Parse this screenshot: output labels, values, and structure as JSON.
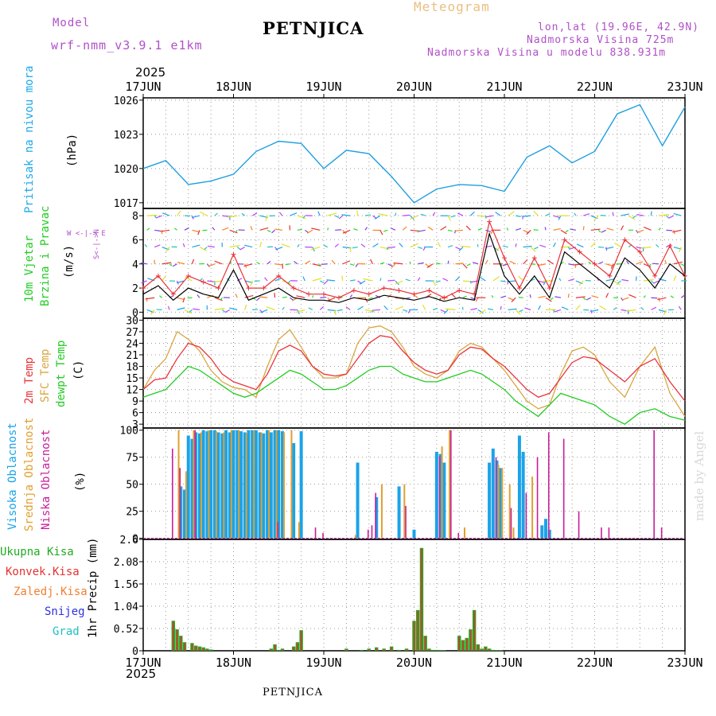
{
  "header": {
    "model_label": "Model",
    "model_name": "wrf-nmm_v3.9.1 e1km",
    "station": "PETNJICA",
    "product": "Meteogram",
    "coords": "lon,lat (19.96E, 42.9N)",
    "altitude": "Nadmorska Visina 725m",
    "model_altitude": "Nadmorska Visina u modelu 838.931m",
    "footer_station": "PETNJICA",
    "credit": "made by Angel"
  },
  "time_axis": {
    "year_top": "2025",
    "year_bottom": "2025",
    "labels": [
      "17JUN",
      "18JUN",
      "19JUN",
      "20JUN",
      "21JUN",
      "22JUN",
      "23JUN"
    ],
    "hours_total": 144
  },
  "colors": {
    "pressure": "#1f9fe0",
    "wind": "#000000",
    "gust": "#e8343a",
    "temp2m": "#e8343a",
    "sfc": "#d9a540",
    "dewpt": "#22cc22",
    "high_cloud": "#1aa3e8",
    "mid_cloud": "#e0a030",
    "low_cloud": "#c81e9a",
    "total_precip": "#22aa22",
    "conv_precip": "#e83030",
    "frozen": "#f08030",
    "snow": "#3030e0",
    "grad": "#20c0c0",
    "purple_text": "#b050c8"
  },
  "panels": {
    "pressure": {
      "ylabel": "Pritisak na nivou mora",
      "unit": "(hPa)",
      "ticks": [
        "1017",
        "1020",
        "1023",
        "1026"
      ]
    },
    "wind": {
      "ylabel1": "10m Vjetar",
      "ylabel2": "Brzina i Pravac",
      "unit": "(m/s)",
      "ticks": [
        "0",
        "2",
        "4",
        "6",
        "8"
      ],
      "compass": "W <-|-> E",
      "compass_ns": "S<-|->N"
    },
    "temp": {
      "ylabel1": "2m Temp",
      "ylabel2": "SFC Temp",
      "ylabel3": "dewpt Temp",
      "unit": "(C)",
      "ticks": [
        "3",
        "6",
        "9",
        "12",
        "15",
        "18",
        "21",
        "24",
        "27",
        "30"
      ]
    },
    "cloud": {
      "ylabel1": "Visoka Oblacnost",
      "ylabel2": "Srednja Oblacnost",
      "ylabel3": "Niska Oblacnost",
      "unit": "(%)",
      "ticks": [
        "0",
        "25",
        "50",
        "75",
        "100"
      ]
    },
    "precip": {
      "ylabel": "1hr Precip (mm)",
      "legend": [
        "Ukupna Kisa",
        "Konvek.Kisa",
        "Zaledj.Kisa",
        "Snijeg",
        "Grad"
      ],
      "ticks": [
        "0",
        "0.52",
        "1.04",
        "1.56",
        "2.08",
        "2.6"
      ]
    }
  },
  "chart_data": [
    {
      "type": "line",
      "name": "pressure",
      "x_hours": [
        0,
        6,
        12,
        18,
        24,
        30,
        36,
        42,
        48,
        54,
        60,
        66,
        72,
        78,
        84,
        90,
        96,
        102,
        108,
        114,
        120,
        126,
        132,
        138,
        144
      ],
      "y": [
        1020.0,
        1020.7,
        1018.6,
        1018.9,
        1019.5,
        1021.5,
        1022.4,
        1022.2,
        1020.0,
        1021.6,
        1021.3,
        1019.3,
        1017.0,
        1018.2,
        1018.6,
        1018.5,
        1018.0,
        1021.0,
        1022.0,
        1020.5,
        1021.5,
        1024.8,
        1025.6,
        1022.0,
        1025.4
      ],
      "ylim": [
        1016.5,
        1026.2
      ]
    },
    {
      "type": "line",
      "name": "wind_speed",
      "x_hours": [
        0,
        4,
        8,
        12,
        16,
        20,
        24,
        28,
        32,
        36,
        40,
        44,
        48,
        52,
        56,
        60,
        64,
        68,
        72,
        76,
        80,
        84,
        88,
        92,
        96,
        100,
        104,
        108,
        112,
        116,
        120,
        124,
        128,
        132,
        136,
        140,
        144
      ],
      "y": [
        1.5,
        2.2,
        1.0,
        2.0,
        1.5,
        1.2,
        3.5,
        1.0,
        1.5,
        2.0,
        1.2,
        1.0,
        1.0,
        0.8,
        1.2,
        1.0,
        1.4,
        1.2,
        1.0,
        1.3,
        0.9,
        1.2,
        1.0,
        6.5,
        3.0,
        1.5,
        3.0,
        1.2,
        5.0,
        4.0,
        3.0,
        2.0,
        4.5,
        3.5,
        2.0,
        4.0,
        3.0
      ],
      "gust_y": [
        2.0,
        3.0,
        1.5,
        3.0,
        2.5,
        2.0,
        4.8,
        2.0,
        2.0,
        3.0,
        2.0,
        1.5,
        1.5,
        1.2,
        1.8,
        1.5,
        2.0,
        1.8,
        1.5,
        1.8,
        1.2,
        1.8,
        1.5,
        7.5,
        4.5,
        2.0,
        4.5,
        2.0,
        6.0,
        5.0,
        4.0,
        3.0,
        6.0,
        5.0,
        3.0,
        5.5,
        3.0
      ],
      "ylim": [
        -0.5,
        8.6
      ]
    },
    {
      "type": "line",
      "name": "temperature",
      "x_hours": [
        0,
        3,
        6,
        9,
        12,
        15,
        18,
        21,
        24,
        27,
        30,
        33,
        36,
        39,
        42,
        45,
        48,
        51,
        54,
        57,
        60,
        63,
        66,
        69,
        72,
        75,
        78,
        81,
        84,
        87,
        90,
        93,
        96,
        99,
        102,
        105,
        108,
        111,
        114,
        117,
        120,
        124,
        128,
        132,
        136,
        140,
        144
      ],
      "temp2m": [
        12,
        14.5,
        15,
        20,
        24,
        23,
        20,
        16,
        14,
        13,
        12,
        16,
        22,
        23.5,
        22,
        18,
        16,
        15.5,
        16,
        20,
        24,
        26,
        25.5,
        22,
        19,
        17,
        16,
        17,
        21,
        23,
        22.5,
        20,
        18,
        15,
        12,
        10,
        11,
        15,
        19,
        20.5,
        20,
        17,
        14,
        18,
        20,
        14,
        9
      ],
      "sfc": [
        12,
        17,
        20,
        27,
        25,
        22,
        17,
        14,
        12.5,
        12,
        10,
        18,
        25,
        27.5,
        23,
        18,
        15,
        15,
        16,
        24,
        28,
        28.5,
        27,
        23,
        18,
        16,
        15,
        17,
        22,
        24,
        23,
        20,
        17,
        13,
        9,
        7,
        8,
        16,
        22,
        23,
        21,
        14,
        10,
        18,
        23,
        11,
        5
      ],
      "dewpt": [
        10,
        11,
        12,
        15,
        18,
        17,
        15,
        13,
        11,
        10,
        11,
        13,
        15,
        17,
        16,
        14,
        12,
        12,
        13,
        15,
        17,
        18,
        18,
        16,
        15,
        14,
        14,
        15,
        16,
        17,
        16,
        14,
        12,
        9,
        7,
        5,
        8,
        11,
        10,
        9,
        8,
        5,
        3,
        6,
        7,
        5,
        4
      ],
      "ylim": [
        2,
        30.5
      ]
    },
    {
      "type": "bar",
      "name": "cloud_cover",
      "series": [
        {
          "name": "high",
          "hours": [
            10,
            11,
            12,
            13,
            14,
            15,
            16,
            17,
            18,
            19,
            20,
            21,
            22,
            23,
            24,
            25,
            26,
            27,
            28,
            29,
            30,
            31,
            32,
            33,
            34,
            35,
            36,
            37,
            40,
            42,
            57,
            62,
            68,
            72,
            78,
            79,
            80,
            92,
            93,
            94,
            95,
            100,
            101,
            106,
            107,
            108
          ],
          "values": [
            48,
            45,
            95,
            92,
            98,
            97,
            100,
            99,
            100,
            100,
            98,
            97,
            100,
            98,
            100,
            100,
            99,
            98,
            100,
            100,
            100,
            98,
            97,
            100,
            98,
            100,
            100,
            99,
            88,
            99,
            70,
            38,
            48,
            8,
            80,
            78,
            70,
            70,
            83,
            72,
            65,
            95,
            80,
            12,
            18,
            8
          ]
        },
        {
          "name": "mid",
          "hours": [
            9,
            11,
            13,
            15,
            17,
            19,
            21,
            23,
            25,
            27,
            29,
            31,
            33,
            35,
            37,
            39,
            41,
            56,
            63,
            69,
            79,
            81,
            85,
            94,
            95,
            97,
            98,
            103
          ],
          "values": [
            100,
            62,
            100,
            98,
            100,
            99,
            98,
            100,
            100,
            97,
            100,
            98,
            100,
            100,
            98,
            100,
            15,
            3,
            50,
            50,
            85,
            100,
            10,
            68,
            65,
            50,
            10,
            57
          ]
        },
        {
          "name": "low",
          "hours": [
            8,
            10,
            14,
            36,
            46,
            48,
            60,
            61,
            62,
            70,
            79,
            82,
            84,
            94,
            98,
            102,
            105,
            108,
            112,
            116,
            122,
            124,
            136,
            138
          ],
          "values": [
            83,
            65,
            100,
            15,
            10,
            5,
            8,
            12,
            42,
            30,
            76,
            100,
            5,
            75,
            28,
            42,
            75,
            98,
            92,
            25,
            10,
            10,
            100,
            10
          ]
        }
      ],
      "ylim": [
        0,
        100
      ]
    },
    {
      "type": "bar",
      "name": "precip_1hr",
      "series": [
        {
          "name": "total",
          "hours": [
            8,
            9,
            10,
            11,
            13,
            14,
            15,
            16,
            17,
            18,
            34,
            35,
            36,
            37,
            40,
            41,
            42,
            54,
            58,
            60,
            62,
            64,
            66,
            68,
            70,
            72,
            73,
            74,
            75,
            76,
            77,
            78,
            79,
            80,
            84,
            85,
            86,
            87,
            88,
            89,
            90,
            91,
            92,
            93,
            94,
            95
          ],
          "values": [
            0.7,
            0.5,
            0.35,
            0.2,
            0.18,
            0.12,
            0.1,
            0.08,
            0.05,
            0.03,
            0.05,
            0.15,
            0.02,
            0.05,
            0.1,
            0.2,
            0.48,
            0.05,
            0.02,
            0.05,
            0.08,
            0.05,
            0.1,
            0.02,
            0.05,
            0.7,
            0.95,
            2.4,
            0.35,
            0.05,
            0.02,
            0.02,
            0.01,
            0.01,
            0.35,
            0.25,
            0.3,
            0.5,
            0.95,
            0.15,
            0.05,
            0.1,
            0.05,
            0.02,
            0.01,
            0.01
          ]
        }
      ],
      "ylim": [
        0,
        2.6
      ]
    }
  ]
}
